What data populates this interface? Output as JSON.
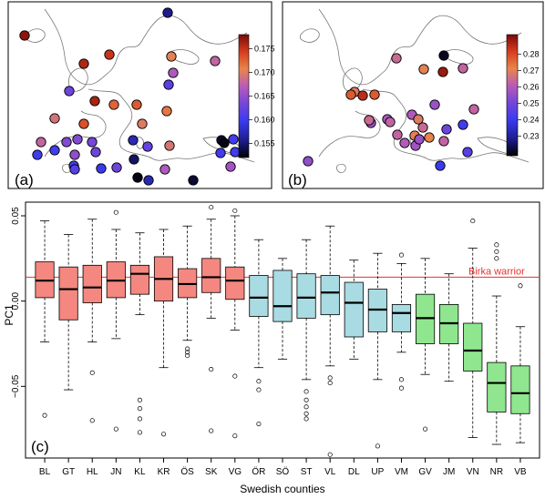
{
  "panel_a": {
    "label": "(a)",
    "colorbar": {
      "min": 0.152,
      "max": 0.178,
      "ticks": [
        "0.155",
        "0.160",
        "0.165",
        "0.170",
        "0.175"
      ],
      "tick_values": [
        0.155,
        0.16,
        0.165,
        0.17,
        0.175
      ]
    }
  },
  "panel_b": {
    "label": "(b)",
    "colorbar": {
      "min": 0.218,
      "max": 0.292,
      "ticks": [
        "0.23",
        "0.24",
        "0.25",
        "0.26",
        "0.27",
        "0.28"
      ],
      "tick_values": [
        0.23,
        0.24,
        0.25,
        0.26,
        0.27,
        0.28
      ]
    }
  },
  "colormap": [
    "#000000",
    "#1d1d8e",
    "#3b3bf0",
    "#7a47d6",
    "#b85cb8",
    "#e8854a",
    "#d63d1f",
    "#7a0a0a"
  ],
  "chart_data": {
    "type": "box",
    "label": "(c)",
    "xlabel": "Swedish counties",
    "ylabel": "PC1",
    "ylim": [
      -0.092,
      0.058
    ],
    "yticks": [
      -0.05,
      0.0,
      0.05
    ],
    "ytick_labels": [
      "−0.05",
      "0.00",
      "0.05"
    ],
    "reference_line": {
      "value": 0.014,
      "label": "Birka warrior",
      "color": "#e8302e"
    },
    "group_colors": {
      "south": "#f4877f",
      "middle": "#a9dbe3",
      "north": "#8fe68f"
    },
    "categories": [
      "BL",
      "GT",
      "HL",
      "JN",
      "KL",
      "KR",
      "ÖS",
      "SK",
      "VG",
      "ÖR",
      "SÖ",
      "ST",
      "VL",
      "DL",
      "UP",
      "VM",
      "GV",
      "JM",
      "VN",
      "NR",
      "VB"
    ],
    "groups": [
      "south",
      "south",
      "south",
      "south",
      "south",
      "south",
      "south",
      "south",
      "south",
      "middle",
      "middle",
      "middle",
      "middle",
      "middle",
      "middle",
      "middle",
      "north",
      "north",
      "north",
      "north",
      "north"
    ],
    "boxes": [
      {
        "wlo": -0.024,
        "q1": 0.002,
        "med": 0.012,
        "q3": 0.023,
        "whi": 0.047,
        "out": [
          -0.067
        ]
      },
      {
        "wlo": -0.052,
        "q1": -0.011,
        "med": 0.007,
        "q3": 0.02,
        "whi": 0.039,
        "out": []
      },
      {
        "wlo": -0.024,
        "q1": -0.001,
        "med": 0.008,
        "q3": 0.021,
        "whi": 0.048,
        "out": [
          -0.042,
          -0.07
        ]
      },
      {
        "wlo": -0.022,
        "q1": 0.002,
        "med": 0.012,
        "q3": 0.023,
        "whi": 0.042,
        "out": [
          0.052,
          -0.075
        ]
      },
      {
        "wlo": -0.008,
        "q1": 0.004,
        "med": 0.016,
        "q3": 0.021,
        "whi": 0.04,
        "out": [
          -0.058,
          -0.063,
          -0.069,
          -0.077
        ]
      },
      {
        "wlo": -0.039,
        "q1": 0.0,
        "med": 0.013,
        "q3": 0.026,
        "whi": 0.042,
        "out": [
          -0.078
        ]
      },
      {
        "wlo": -0.023,
        "q1": 0.002,
        "med": 0.01,
        "q3": 0.019,
        "whi": 0.044,
        "out": [
          -0.028,
          -0.03,
          -0.032
        ]
      },
      {
        "wlo": -0.01,
        "q1": 0.005,
        "med": 0.014,
        "q3": 0.025,
        "whi": 0.048,
        "out": [
          0.055,
          -0.04,
          -0.076
        ]
      },
      {
        "wlo": -0.017,
        "q1": 0.001,
        "med": 0.012,
        "q3": 0.02,
        "whi": 0.05,
        "out": [
          0.053,
          -0.044,
          -0.079
        ]
      },
      {
        "wlo": -0.039,
        "q1": -0.009,
        "med": 0.002,
        "q3": 0.015,
        "whi": 0.036,
        "out": [
          -0.047,
          -0.052,
          -0.072
        ]
      },
      {
        "wlo": -0.034,
        "q1": -0.012,
        "med": -0.003,
        "q3": 0.018,
        "whi": 0.025,
        "out": []
      },
      {
        "wlo": -0.046,
        "q1": -0.01,
        "med": 0.002,
        "q3": 0.016,
        "whi": 0.036,
        "out": [
          -0.053,
          -0.058,
          -0.062,
          -0.066,
          -0.069
        ]
      },
      {
        "wlo": -0.038,
        "q1": -0.008,
        "med": 0.005,
        "q3": 0.015,
        "whi": 0.044,
        "out": [
          -0.045,
          -0.048,
          -0.09
        ]
      },
      {
        "wlo": -0.034,
        "q1": -0.021,
        "med": -0.001,
        "q3": 0.011,
        "whi": 0.024,
        "out": []
      },
      {
        "wlo": -0.046,
        "q1": -0.018,
        "med": -0.005,
        "q3": 0.007,
        "whi": 0.028,
        "out": [
          -0.085
        ]
      },
      {
        "wlo": -0.03,
        "q1": -0.018,
        "med": -0.007,
        "q3": -0.002,
        "whi": 0.022,
        "out": [
          0.027,
          -0.046,
          -0.051
        ]
      },
      {
        "wlo": -0.043,
        "q1": -0.025,
        "med": -0.01,
        "q3": 0.004,
        "whi": 0.025,
        "out": [
          -0.075
        ]
      },
      {
        "wlo": -0.047,
        "q1": -0.025,
        "med": -0.013,
        "q3": -0.002,
        "whi": 0.016,
        "out": []
      },
      {
        "wlo": -0.08,
        "q1": -0.041,
        "med": -0.029,
        "q3": -0.013,
        "whi": 0.031,
        "out": [
          0.047
        ]
      },
      {
        "wlo": -0.084,
        "q1": -0.065,
        "med": -0.048,
        "q3": -0.036,
        "whi": 0.003,
        "out": [
          0.025,
          0.029,
          0.033
        ]
      },
      {
        "wlo": -0.083,
        "q1": -0.066,
        "med": -0.054,
        "q3": -0.038,
        "whi": -0.015,
        "out": [
          0.009
        ]
      }
    ]
  }
}
